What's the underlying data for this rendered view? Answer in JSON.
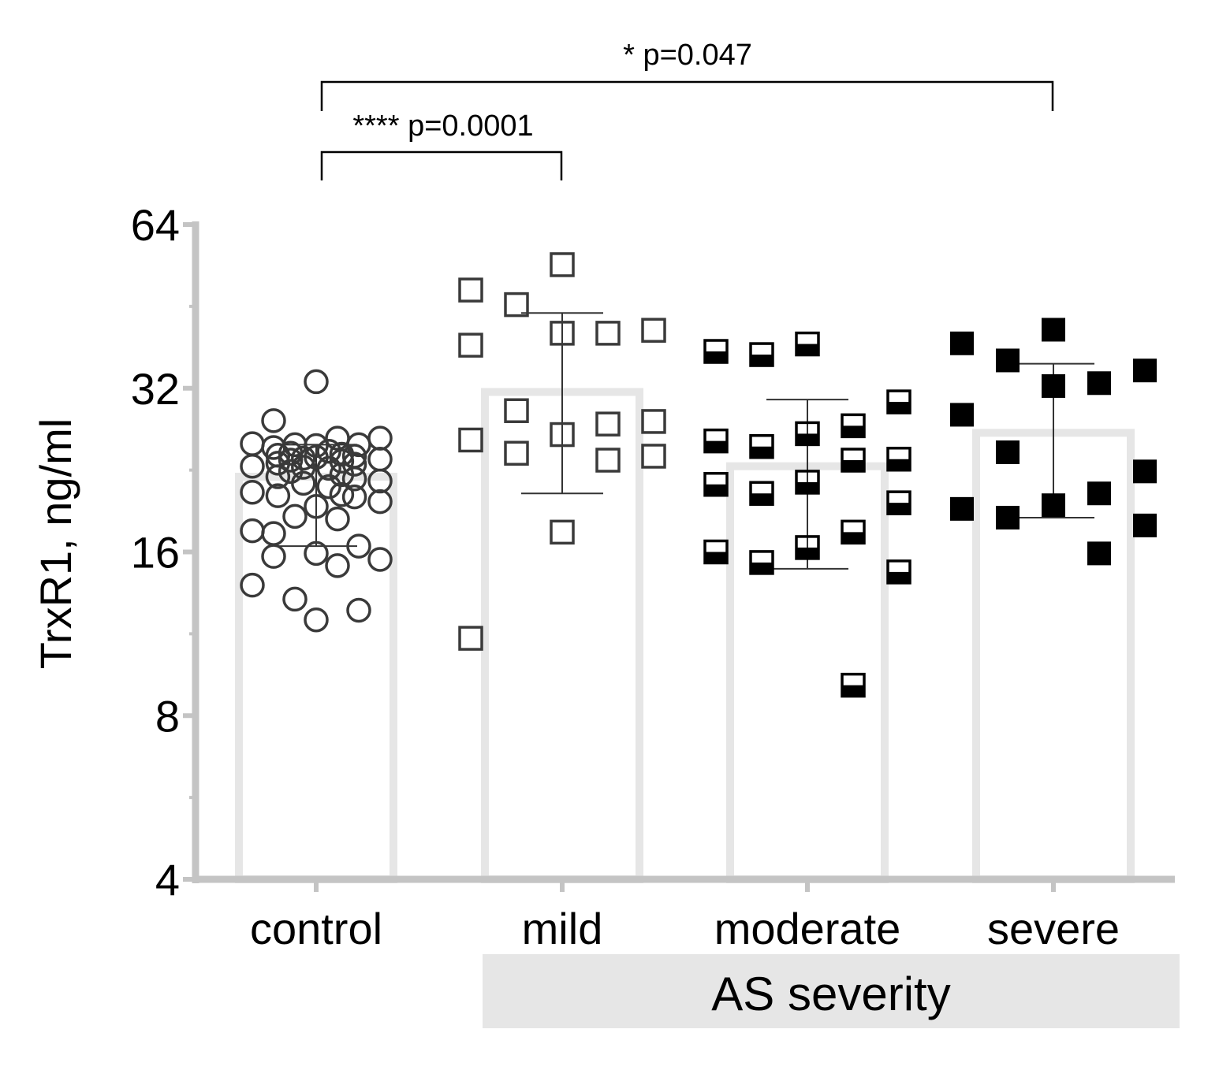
{
  "chart_data": {
    "type": "bar",
    "title": "",
    "ylabel": "TrxR1, ng/ml",
    "xlabel": "",
    "yscale": "log2",
    "ylim": [
      4,
      64
    ],
    "yticks": [
      4,
      8,
      16,
      32,
      64
    ],
    "ytick_labels": [
      "4",
      "8",
      "16",
      "32",
      "64"
    ],
    "categories": [
      "control",
      "mild",
      "moderate",
      "severe"
    ],
    "group_label": "AS severity",
    "group_label_categories": [
      "mild",
      "moderate",
      "severe"
    ],
    "bar_color": "#e6e6e6",
    "axis_color": "#c4c4c4",
    "marker_color": "#3a3a3a",
    "series": [
      {
        "name": "control",
        "marker": "open-circle",
        "bar_mean": 22.0,
        "error_upper": 25.2,
        "error_lower": 16.4,
        "points": [
          32.9,
          27.9,
          25.9,
          25.9,
          25.3,
          25.2,
          25.2,
          25.1,
          24.9,
          24.5,
          24.3,
          24.2,
          24.1,
          24.0,
          23.9,
          23.8,
          23.7,
          23.6,
          23.5,
          23.3,
          23.2,
          23.0,
          22.9,
          22.8,
          22.5,
          22.2,
          22.0,
          21.8,
          21.6,
          21.4,
          21.1,
          20.6,
          20.4,
          20.3,
          20.2,
          19.8,
          19.4,
          18.6,
          18.4,
          17.5,
          17.3,
          16.4,
          15.9,
          15.7,
          15.5,
          15.1,
          13.9,
          13.1,
          12.5,
          12.0
        ]
      },
      {
        "name": "mild",
        "marker": "open-square",
        "bar_mean": 31.5,
        "error_upper": 44.0,
        "error_lower": 20.5,
        "points": [
          54.0,
          48.5,
          45.6,
          40.9,
          40.4,
          40.4,
          38.4,
          29.1,
          27.8,
          27.5,
          26.3,
          25.7,
          24.3,
          24.0,
          23.6,
          17.4,
          11.1
        ]
      },
      {
        "name": "moderate",
        "marker": "half-filled-square",
        "bar_mean": 23.0,
        "error_upper": 30.5,
        "error_lower": 14.9,
        "points": [
          38.6,
          37.4,
          36.9,
          30.2,
          27.3,
          26.4,
          25.6,
          25.0,
          23.7,
          23.6,
          21.5,
          21.3,
          20.5,
          19.7,
          17.4,
          16.3,
          16.0,
          15.3,
          14.7,
          9.1
        ]
      },
      {
        "name": "severe",
        "marker": "filled-square",
        "bar_mean": 26.5,
        "error_upper": 35.5,
        "error_lower": 18.5,
        "points": [
          41.0,
          38.7,
          36.0,
          34.5,
          32.7,
          32.3,
          28.6,
          24.4,
          22.5,
          20.5,
          19.5,
          19.2,
          18.5,
          17.9,
          15.9
        ]
      }
    ],
    "annotations": [
      {
        "from": "control",
        "to": "mild",
        "text": "**** p=0.0001"
      },
      {
        "from": "control",
        "to": "severe",
        "text": "* p=0.047"
      }
    ]
  }
}
